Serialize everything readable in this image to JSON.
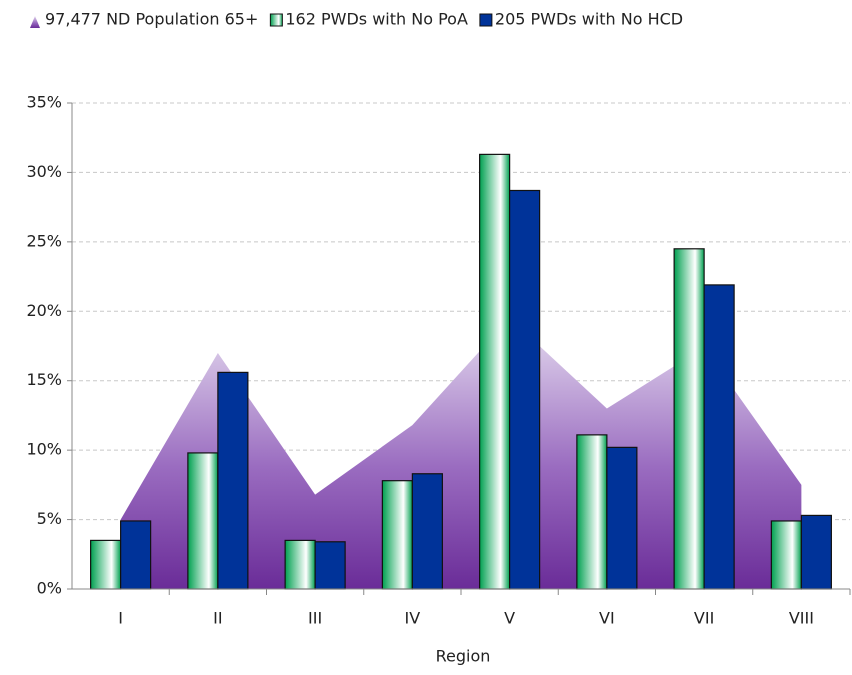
{
  "chart_data": {
    "type": "bar",
    "x_label": "Region",
    "categories": [
      "I",
      "II",
      "III",
      "IV",
      "V",
      "VI",
      "VII",
      "VIII"
    ],
    "legend": "top",
    "grid": true,
    "ylim": [
      0,
      35
    ],
    "yticks": [
      {
        "value": 0,
        "label": "0%"
      },
      {
        "value": 5,
        "label": "5%"
      },
      {
        "value": 10,
        "label": "10%"
      },
      {
        "value": 15,
        "label": "15%"
      },
      {
        "value": 20,
        "label": "20%"
      },
      {
        "value": 25,
        "label": "25%"
      },
      {
        "value": 30,
        "label": "30%"
      },
      {
        "value": 35,
        "label": "35%"
      }
    ],
    "series": [
      {
        "name": "97,477 ND Population 65+",
        "type": "area",
        "color": "#7030a0",
        "values": [
          5,
          17,
          6.8,
          11.8,
          19.5,
          13,
          17.4,
          7.5
        ]
      },
      {
        "name": "162 PWDs with No PoA",
        "type": "bar",
        "color": "#00a050",
        "values": [
          3.5,
          9.8,
          3.5,
          7.8,
          31.3,
          11.1,
          24.5,
          4.9
        ]
      },
      {
        "name": "205 PWDs with No HCD",
        "type": "bar",
        "color": "#003399",
        "values": [
          4.9,
          15.6,
          3.4,
          8.3,
          28.7,
          10.2,
          21.9,
          5.3
        ]
      }
    ]
  }
}
